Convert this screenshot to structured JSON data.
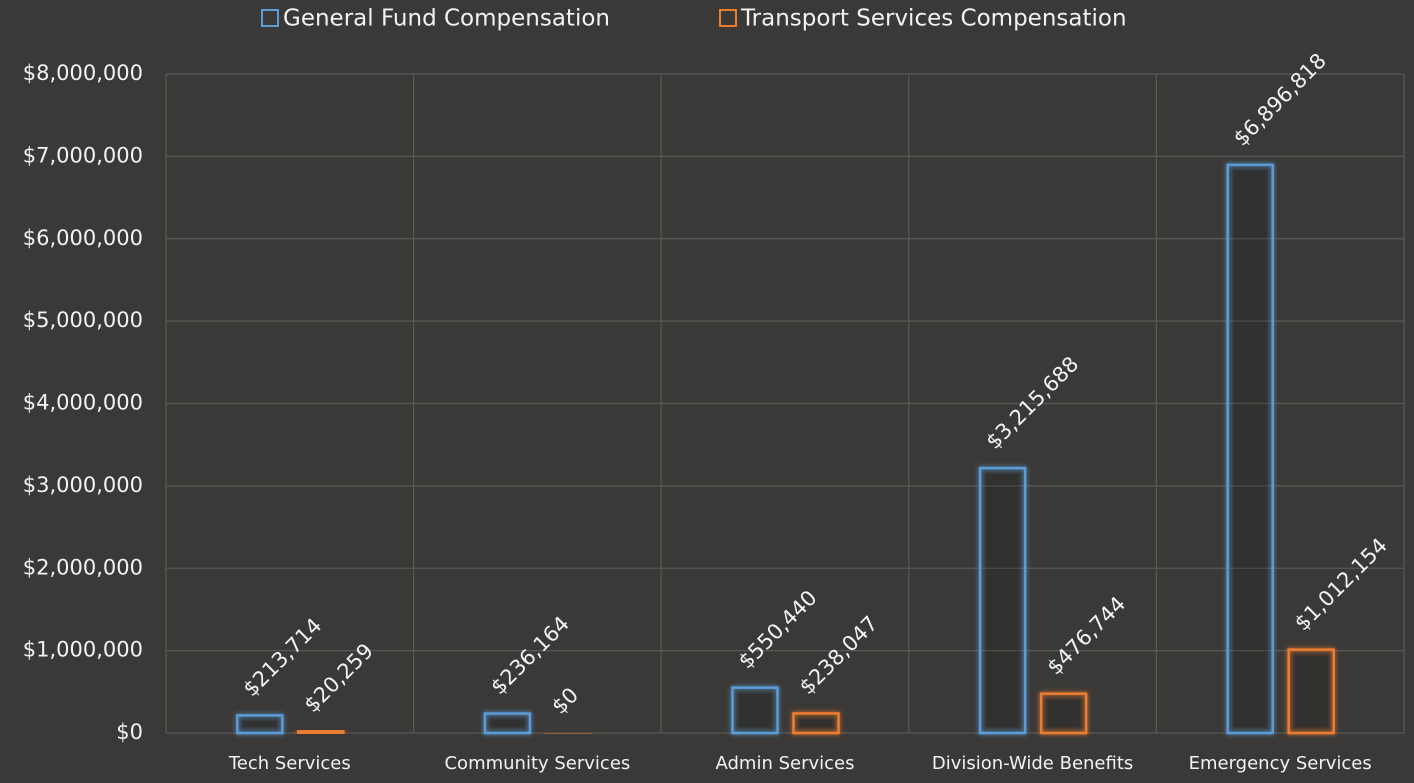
{
  "chart_data": {
    "type": "bar",
    "categories": [
      "Tech Services",
      "Community Services",
      "Admin Services",
      "Division-Wide Benefits",
      "Emergency Services"
    ],
    "series": [
      {
        "name": "General Fund Compensation",
        "color": "#5b9bd5",
        "values": [
          213714,
          236164,
          550440,
          3215688,
          6896818
        ],
        "value_labels": [
          "$213,714",
          "$236,164",
          "$550,440",
          "$3,215,688",
          "$6,896,818"
        ]
      },
      {
        "name": "Transport Services Compensation",
        "color": "#ed7d31",
        "values": [
          20259,
          0,
          238047,
          476744,
          1012154
        ],
        "value_labels": [
          "$20,259",
          "$0",
          "$238,047",
          "$476,744",
          "$1,012,154"
        ]
      }
    ],
    "ylim": [
      0,
      8000000
    ],
    "yticks": [
      {
        "value": 0,
        "label": "$0"
      },
      {
        "value": 1000000,
        "label": "$1,000,000"
      },
      {
        "value": 2000000,
        "label": "$2,000,000"
      },
      {
        "value": 3000000,
        "label": "$3,000,000"
      },
      {
        "value": 4000000,
        "label": "$4,000,000"
      },
      {
        "value": 5000000,
        "label": "$5,000,000"
      },
      {
        "value": 6000000,
        "label": "$6,000,000"
      },
      {
        "value": 7000000,
        "label": "$7,000,000"
      },
      {
        "value": 8000000,
        "label": "$8,000,000"
      }
    ],
    "grid": true,
    "legend": "top"
  }
}
